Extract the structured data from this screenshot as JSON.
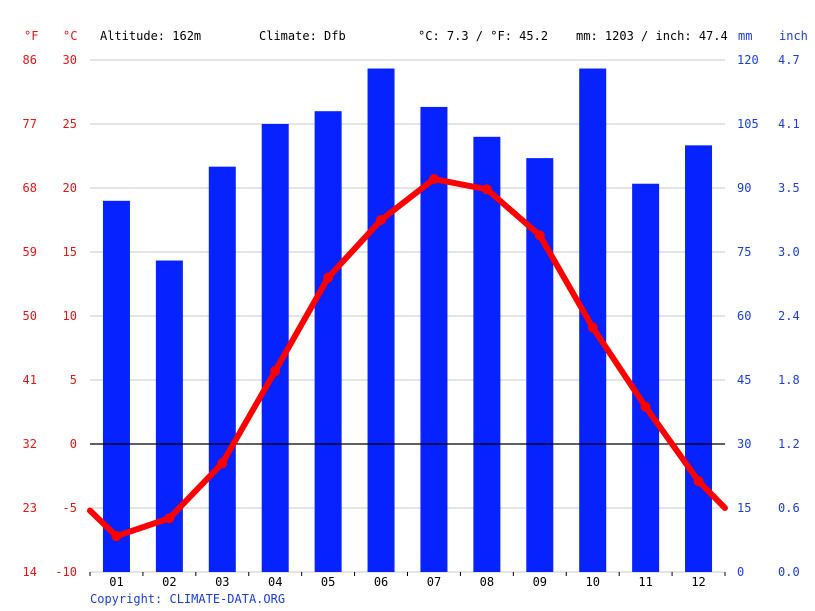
{
  "header": {
    "unit_f": "°F",
    "unit_c": "°C",
    "altitude": "Altitude: 162m",
    "climate": "Climate: Dfb",
    "temp_avg": "°C: 7.3 / °F: 45.2",
    "precip_total": "mm: 1203 / inch: 47.4",
    "unit_mm": "mm",
    "unit_inch": "inch"
  },
  "copyright": "Copyright: CLIMATE-DATA.ORG",
  "colors": {
    "precip": "#0522ff",
    "temp": "#ff0000",
    "left_axis": "#e8141a",
    "right_axis": "#1a3de0"
  },
  "chart_data": {
    "type": "bar",
    "categories": [
      "01",
      "02",
      "03",
      "04",
      "05",
      "06",
      "07",
      "08",
      "09",
      "10",
      "11",
      "12"
    ],
    "series": [
      {
        "type": "bar",
        "axis": "mm",
        "values": [
          87,
          73,
          95,
          105,
          108,
          118,
          109,
          102,
          97,
          118,
          91,
          100
        ]
      },
      {
        "type": "line",
        "axis": "celsius",
        "values": [
          -7.2,
          -5.8,
          -1.5,
          5.7,
          13.0,
          17.5,
          20.7,
          19.9,
          16.3,
          9.1,
          2.9,
          -2.9
        ]
      }
    ],
    "line_endpoints": {
      "start": -5.2,
      "end": -5.0
    },
    "celsius_ticks": [
      "30",
      "25",
      "20",
      "15",
      "10",
      "5",
      "0",
      "-5",
      "-10"
    ],
    "fahrenheit_ticks": [
      "86",
      "77",
      "68",
      "59",
      "50",
      "41",
      "32",
      "23",
      "14"
    ],
    "mm_ticks": [
      "120",
      "105",
      "90",
      "75",
      "60",
      "45",
      "30",
      "15",
      "0"
    ],
    "inch_ticks": [
      "4.7",
      "4.1",
      "3.5",
      "3.0",
      "2.4",
      "1.8",
      "1.2",
      "0.6",
      "0.0"
    ],
    "celsius_range": [
      -10,
      30
    ],
    "mm_range": [
      0,
      120
    ],
    "grid": true
  }
}
